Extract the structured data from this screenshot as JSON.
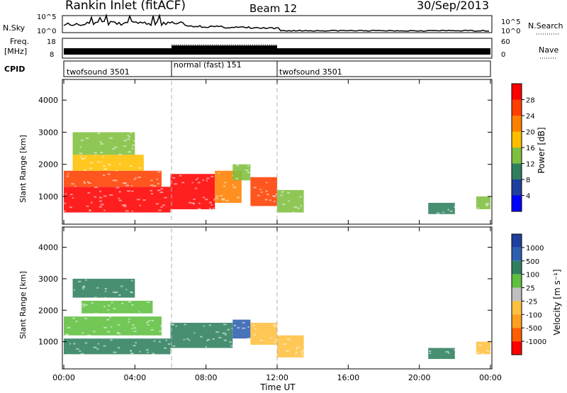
{
  "header": {
    "title": "Rankin Inlet (fitACF)",
    "beam": "Beam 12",
    "date": "30/Sep/2013"
  },
  "noise_panel": {
    "left_label": "N.Sky",
    "right_label": "N.Search",
    "left_ticks": [
      "10^5",
      "10^0"
    ],
    "right_ticks": [
      "10^5",
      "10^0"
    ]
  },
  "freq_panel": {
    "left_label_1": "Freq.",
    "left_label_2": "[MHz]",
    "right_label": "Nave",
    "left_ticks": [
      "18",
      "8"
    ],
    "right_ticks": [
      "60",
      "0"
    ]
  },
  "cpid_panel": {
    "label": "CPID",
    "segments": [
      {
        "label": "twofsound 3501",
        "start_h": 0,
        "end_h": 6
      },
      {
        "label": "normal (fast) 151",
        "start_h": 6,
        "end_h": 12
      },
      {
        "label": "twofsound 3501",
        "start_h": 12,
        "end_h": 24
      }
    ]
  },
  "x_axis": {
    "label": "Time UT",
    "ticks": [
      "00:00",
      "04:00",
      "08:00",
      "12:00",
      "16:00",
      "20:00",
      "00:00"
    ]
  },
  "y_axis": {
    "label": "Slant Range [km]",
    "ticks": [
      "1000",
      "2000",
      "3000",
      "4000"
    ]
  },
  "power_colorbar": {
    "label": "Power [dB]",
    "ticks": [
      "4",
      "8",
      "12",
      "16",
      "20",
      "24",
      "28"
    ],
    "colors": [
      "#0000ff",
      "#1f3f9f",
      "#2f7f5f",
      "#7fbf3f",
      "#ffbf00",
      "#ff7f00",
      "#ff3f00",
      "#ff0000"
    ]
  },
  "velocity_colorbar": {
    "label": "Velocity [m s⁻¹]",
    "ticks": [
      "1000",
      "500",
      "100",
      "25",
      "-25",
      "-100",
      "-500",
      "-1000"
    ],
    "colors": [
      "#1f3f9f",
      "#2f5faf",
      "#2f7f5f",
      "#5fbf3f",
      "#bfbfbf",
      "#ffbf3f",
      "#ff9f1f",
      "#ff5f00",
      "#ff0000"
    ]
  },
  "chart_data": {
    "type": "heatmap",
    "x_range_hours": [
      0,
      24
    ],
    "y_range_km": [
      180,
      4600
    ],
    "dividers_hours": [
      6,
      12
    ],
    "power_blobs": [
      {
        "t0": 0.0,
        "t1": 6.0,
        "r0": 500,
        "r1": 1300,
        "level": 28
      },
      {
        "t0": 0.0,
        "t1": 5.5,
        "r0": 1300,
        "r1": 1800,
        "level": 24
      },
      {
        "t0": 0.5,
        "t1": 4.5,
        "r0": 1800,
        "r1": 2300,
        "level": 16
      },
      {
        "t0": 0.5,
        "t1": 4.0,
        "r0": 2300,
        "r1": 3000,
        "level": 12
      },
      {
        "t0": 6.0,
        "t1": 8.5,
        "r0": 600,
        "r1": 1700,
        "level": 28
      },
      {
        "t0": 8.5,
        "t1": 10.0,
        "r0": 800,
        "r1": 1800,
        "level": 20
      },
      {
        "t0": 9.5,
        "t1": 10.5,
        "r0": 1500,
        "r1": 2000,
        "level": 12
      },
      {
        "t0": 10.5,
        "t1": 12.0,
        "r0": 700,
        "r1": 1600,
        "level": 24
      },
      {
        "t0": 12.0,
        "t1": 13.5,
        "r0": 500,
        "r1": 1200,
        "level": 12
      },
      {
        "t0": 20.5,
        "t1": 22.0,
        "r0": 450,
        "r1": 800,
        "level": 8
      },
      {
        "t0": 23.2,
        "t1": 24.0,
        "r0": 600,
        "r1": 1000,
        "level": 12
      }
    ],
    "velocity_blobs": [
      {
        "t0": 0.0,
        "t1": 6.0,
        "r0": 600,
        "r1": 1100,
        "level": 100
      },
      {
        "t0": 0.0,
        "t1": 5.5,
        "r0": 1200,
        "r1": 1800,
        "level": 25
      },
      {
        "t0": 1.0,
        "t1": 5.0,
        "r0": 1900,
        "r1": 2300,
        "level": 25
      },
      {
        "t0": 0.5,
        "t1": 4.0,
        "r0": 2400,
        "r1": 3000,
        "level": 100
      },
      {
        "t0": 6.0,
        "t1": 9.5,
        "r0": 800,
        "r1": 1600,
        "level": 100
      },
      {
        "t0": 9.5,
        "t1": 10.5,
        "r0": 1100,
        "r1": 1700,
        "level": 500
      },
      {
        "t0": 10.5,
        "t1": 12.0,
        "r0": 900,
        "r1": 1600,
        "level": -100
      },
      {
        "t0": 12.0,
        "t1": 13.5,
        "r0": 500,
        "r1": 1200,
        "level": -100
      },
      {
        "t0": 20.5,
        "t1": 22.0,
        "r0": 450,
        "r1": 800,
        "level": 100
      },
      {
        "t0": 23.2,
        "t1": 24.0,
        "r0": 600,
        "r1": 1000,
        "level": -100
      }
    ]
  }
}
